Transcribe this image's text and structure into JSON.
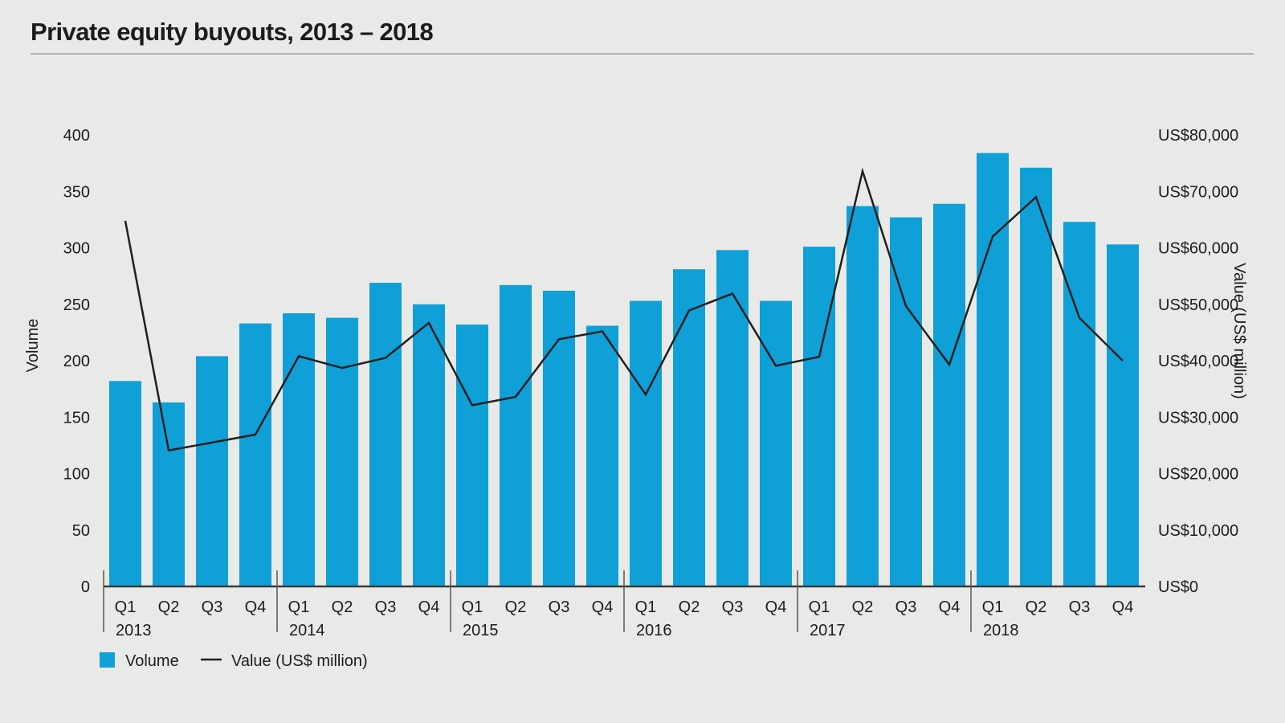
{
  "page": {
    "title": "Private equity buyouts, 2013 – 2018"
  },
  "chart_data": {
    "type": "bar+line",
    "title": "Private equity buyouts, 2013 – 2018",
    "years": [
      "2013",
      "2014",
      "2015",
      "2016",
      "2017",
      "2018"
    ],
    "quarters": [
      "Q1",
      "Q2",
      "Q3",
      "Q4"
    ],
    "categories": [
      "Q1 2013",
      "Q2 2013",
      "Q3 2013",
      "Q4 2013",
      "Q1 2014",
      "Q2 2014",
      "Q3 2014",
      "Q4 2014",
      "Q1 2015",
      "Q2 2015",
      "Q3 2015",
      "Q4 2015",
      "Q1 2016",
      "Q2 2016",
      "Q3 2016",
      "Q4 2016",
      "Q1 2017",
      "Q2 2017",
      "Q3 2017",
      "Q4 2017",
      "Q1 2018",
      "Q2 2018",
      "Q3 2018",
      "Q4 2018"
    ],
    "series": [
      {
        "name": "Volume",
        "type": "bar",
        "axis": "left",
        "color": "#0fa0d8",
        "values": [
          182,
          163,
          204,
          233,
          242,
          238,
          269,
          250,
          232,
          267,
          262,
          231,
          253,
          281,
          298,
          253,
          301,
          337,
          327,
          339,
          384,
          371,
          323,
          303
        ]
      },
      {
        "name": "Value (US$ million)",
        "type": "line",
        "axis": "right",
        "color": "#1f1f1d",
        "values": [
          64800,
          24100,
          25500,
          26900,
          40800,
          38700,
          40500,
          46700,
          32100,
          33600,
          43800,
          45200,
          34000,
          48900,
          51900,
          39100,
          40700,
          73600,
          49700,
          39300,
          62000,
          69000,
          47600,
          40000
        ]
      }
    ],
    "left_axis": {
      "title": "Volume",
      "min": 0,
      "max": 400,
      "step": 50,
      "tick_labels": [
        "0",
        "50",
        "100",
        "150",
        "200",
        "250",
        "300",
        "350",
        "400"
      ]
    },
    "right_axis": {
      "title": "Value (US$ million)",
      "min": 0,
      "max": 80000,
      "step": 10000,
      "tick_labels": [
        "US$0",
        "US$10,000",
        "US$20,000",
        "US$30,000",
        "US$40,000",
        "US$50,000",
        "US$60,000",
        "US$70,000",
        "US$80,000"
      ]
    },
    "legend": [
      {
        "label": "Volume",
        "swatch": "square",
        "color": "#0fa0d8"
      },
      {
        "label": "Value (US$ million)",
        "swatch": "line",
        "color": "#1f1f1d"
      }
    ],
    "grid": "off",
    "legend_position": "bottom-left"
  },
  "colors": {
    "background": "#e9e9e7",
    "bar": "#0fa0d8",
    "line": "#1f1f1d",
    "text": "#1d1d1b",
    "axis_line": "#3b3b39",
    "separator": "#585856",
    "title_rule": "#b3b3b1"
  }
}
